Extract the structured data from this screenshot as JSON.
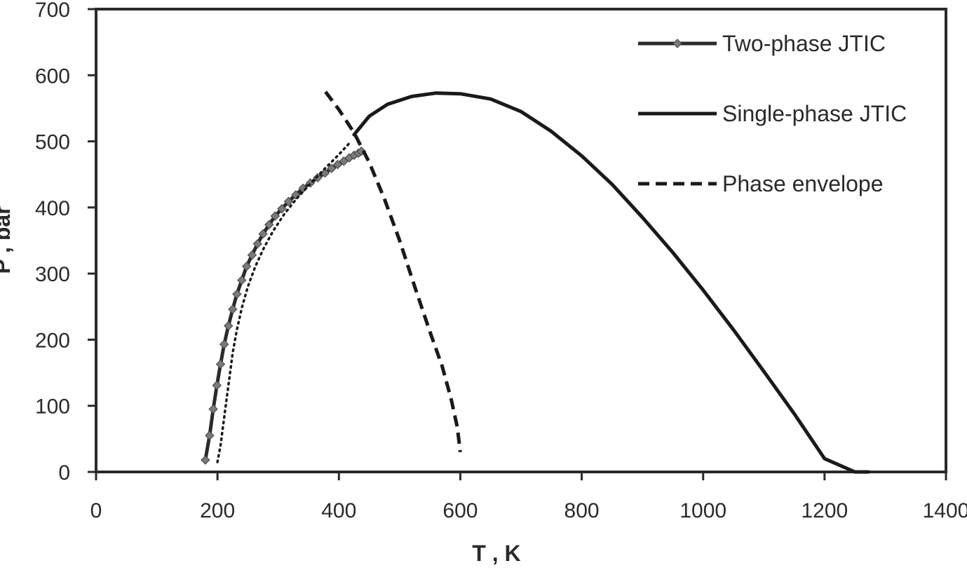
{
  "chart_data": {
    "type": "line",
    "title": "",
    "xlabel": "T , K",
    "ylabel": "P , bar",
    "xlim": [
      0,
      1400
    ],
    "ylim": [
      0,
      700
    ],
    "xticks": [
      "0",
      "200",
      "400",
      "600",
      "800",
      "1000",
      "1200",
      "1400"
    ],
    "yticks": [
      "0",
      "100",
      "200",
      "300",
      "400",
      "500",
      "600",
      "700"
    ],
    "grid": false,
    "legend_position": "top-right",
    "series": [
      {
        "name": "Two-phase JTIC",
        "style": "solid-markers",
        "color": "#2a2a2a",
        "marker_color": "#7a7a7a",
        "x": [
          180,
          187,
          193,
          199,
          205,
          211,
          218,
          225,
          232,
          240,
          248,
          257,
          266,
          275,
          285,
          295,
          306,
          317,
          329,
          341,
          353,
          365,
          377,
          388,
          398,
          408,
          417,
          425,
          432,
          437
        ],
        "y": [
          18,
          55,
          95,
          131,
          163,
          193,
          221,
          246,
          269,
          290,
          311,
          328,
          345,
          360,
          374,
          387,
          398,
          409,
          419,
          429,
          437,
          445,
          452,
          459,
          465,
          470,
          475,
          479,
          482,
          485
        ]
      },
      {
        "name": "Single-phase JTIC",
        "style": "solid",
        "color": "#1a1a1a",
        "x": [
          425,
          450,
          480,
          520,
          560,
          600,
          650,
          700,
          750,
          800,
          850,
          900,
          950,
          1000,
          1050,
          1100,
          1150,
          1200,
          1250,
          1272
        ],
        "y": [
          510,
          538,
          556,
          568,
          573,
          572,
          564,
          545,
          515,
          478,
          435,
          385,
          332,
          275,
          215,
          152,
          88,
          20,
          0,
          0
        ]
      },
      {
        "name": "Phase envelope",
        "style": "dashed",
        "color": "#1a1a1a",
        "x": [
          378,
          400,
          425,
          450,
          475,
          500,
          525,
          550,
          570,
          585,
          595,
          600
        ],
        "y": [
          575,
          548,
          513,
          468,
          413,
          350,
          280,
          212,
          160,
          110,
          68,
          30
        ]
      },
      {
        "name": "",
        "style": "dotted",
        "color": "#1a1a1a",
        "x": [
          200,
          205,
          210,
          215,
          220,
          225,
          232,
          240,
          250,
          262,
          276,
          292,
          310,
          330,
          352,
          376,
          400,
          420
        ],
        "y": [
          15,
          40,
          75,
          110,
          145,
          180,
          215,
          248,
          280,
          310,
          338,
          365,
          390,
          413,
          435,
          458,
          480,
          500
        ]
      }
    ]
  }
}
